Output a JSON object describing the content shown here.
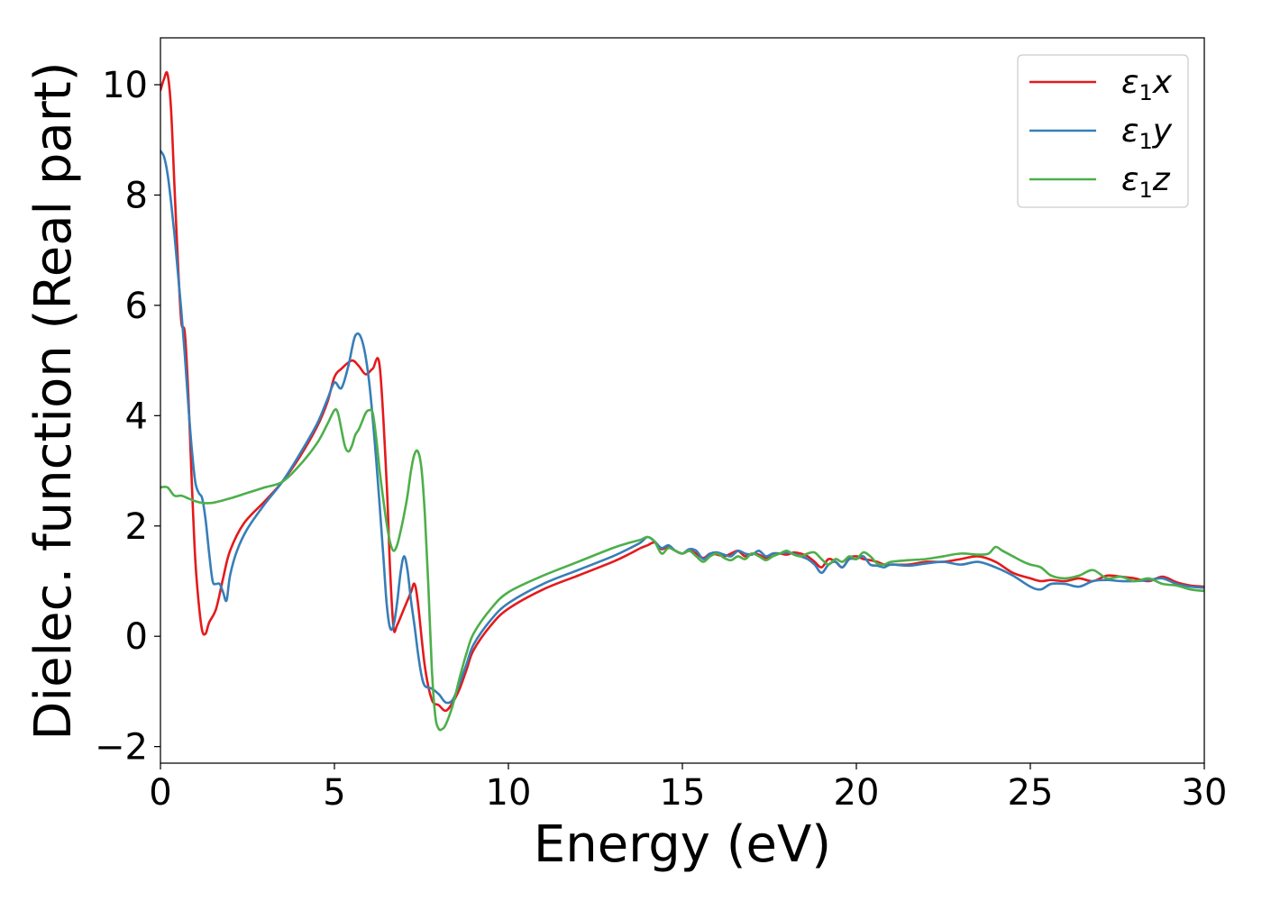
{
  "chart_data": {
    "type": "line",
    "xlabel": "Energy (eV)",
    "ylabel": "Dielec. function (Real part)",
    "xlim": [
      0,
      30
    ],
    "ylim": [
      -2.3,
      10.85
    ],
    "xticks": [
      0,
      5,
      10,
      15,
      20,
      25,
      30
    ],
    "xtick_labels": [
      "0",
      "5",
      "10",
      "15",
      "20",
      "25",
      "30"
    ],
    "yticks": [
      -2,
      0,
      2,
      4,
      6,
      8,
      10
    ],
    "ytick_labels": [
      "−2",
      "0",
      "2",
      "4",
      "6",
      "8",
      "10"
    ],
    "grid": false,
    "legend_position": "top-right",
    "series": [
      {
        "name": "ε1x",
        "name_base": "ε",
        "name_sub": "1",
        "name_var": "x",
        "color": "#e41a1c",
        "x": [
          0,
          0.1,
          0.2,
          0.3,
          0.4,
          0.5,
          0.6,
          0.7,
          0.8,
          0.9,
          1.0,
          1.1,
          1.2,
          1.3,
          1.4,
          1.6,
          1.8,
          2.0,
          2.4,
          3.0,
          3.5,
          4.0,
          4.5,
          4.8,
          5.0,
          5.2,
          5.5,
          5.7,
          5.9,
          6.1,
          6.3,
          6.5,
          6.6,
          6.7,
          6.8,
          7.0,
          7.2,
          7.3,
          7.4,
          7.6,
          7.8,
          8.0,
          8.2,
          8.4,
          8.6,
          8.8,
          9.0,
          9.5,
          10.0,
          11.0,
          12.0,
          13.0,
          13.5,
          13.8,
          14.0,
          14.2,
          14.4,
          14.6,
          14.8,
          15.0,
          15.2,
          15.4,
          15.6,
          15.8,
          16.0,
          16.2,
          16.4,
          16.6,
          16.8,
          17.0,
          17.2,
          17.4,
          17.6,
          17.8,
          18.0,
          18.2,
          18.4,
          18.6,
          18.8,
          19.0,
          19.2,
          19.4,
          19.6,
          19.8,
          20.0,
          20.2,
          20.4,
          20.6,
          20.8,
          21.0,
          21.5,
          22.0,
          22.5,
          23.0,
          23.5,
          24.0,
          24.5,
          25.0,
          25.3,
          25.6,
          26.0,
          26.4,
          26.8,
          27.2,
          27.6,
          28.0,
          28.4,
          28.8,
          29.2,
          29.6,
          30.0
        ],
        "y": [
          9.9,
          10.1,
          10.2,
          9.6,
          8.2,
          6.8,
          5.7,
          5.5,
          4.4,
          2.8,
          1.4,
          0.6,
          0.1,
          0.05,
          0.25,
          0.5,
          1.05,
          1.55,
          2.05,
          2.45,
          2.8,
          3.25,
          3.8,
          4.25,
          4.7,
          4.85,
          5.0,
          4.9,
          4.75,
          4.85,
          4.9,
          2.8,
          1.2,
          0.15,
          0.2,
          0.5,
          0.8,
          0.95,
          0.6,
          -0.55,
          -1.15,
          -1.25,
          -1.35,
          -1.2,
          -0.95,
          -0.6,
          -0.25,
          0.2,
          0.5,
          0.85,
          1.1,
          1.35,
          1.5,
          1.6,
          1.65,
          1.7,
          1.58,
          1.62,
          1.55,
          1.5,
          1.55,
          1.5,
          1.42,
          1.5,
          1.48,
          1.45,
          1.5,
          1.55,
          1.45,
          1.5,
          1.48,
          1.42,
          1.5,
          1.5,
          1.48,
          1.52,
          1.5,
          1.45,
          1.35,
          1.25,
          1.4,
          1.35,
          1.25,
          1.42,
          1.45,
          1.4,
          1.38,
          1.35,
          1.3,
          1.3,
          1.3,
          1.35,
          1.35,
          1.4,
          1.45,
          1.35,
          1.15,
          1.05,
          1.0,
          1.02,
          1.0,
          1.05,
          1.0,
          1.1,
          1.08,
          1.05,
          1.0,
          1.08,
          0.98,
          0.92,
          0.9
        ]
      },
      {
        "name": "ε1y",
        "name_base": "ε",
        "name_sub": "1",
        "name_var": "y",
        "color": "#377eb8",
        "x": [
          0,
          0.1,
          0.2,
          0.3,
          0.4,
          0.5,
          0.6,
          0.7,
          0.8,
          0.9,
          1.0,
          1.1,
          1.2,
          1.3,
          1.4,
          1.5,
          1.6,
          1.7,
          1.8,
          1.9,
          2.0,
          2.2,
          2.5,
          3.0,
          3.5,
          4.0,
          4.5,
          4.8,
          5.0,
          5.2,
          5.4,
          5.6,
          5.8,
          6.0,
          6.2,
          6.4,
          6.5,
          6.6,
          6.7,
          6.8,
          6.9,
          7.0,
          7.1,
          7.2,
          7.3,
          7.4,
          7.5,
          7.6,
          7.8,
          8.0,
          8.2,
          8.4,
          8.6,
          8.8,
          9.0,
          9.5,
          10.0,
          11.0,
          12.0,
          13.0,
          13.5,
          13.8,
          14.0,
          14.2,
          14.4,
          14.6,
          14.8,
          15.0,
          15.2,
          15.4,
          15.6,
          15.8,
          16.0,
          16.2,
          16.4,
          16.6,
          16.8,
          17.0,
          17.2,
          17.4,
          17.6,
          17.8,
          18.0,
          18.2,
          18.4,
          18.6,
          18.8,
          19.0,
          19.2,
          19.4,
          19.6,
          19.8,
          20.0,
          20.2,
          20.4,
          20.6,
          20.8,
          21.0,
          21.5,
          22.0,
          22.5,
          23.0,
          23.5,
          24.0,
          24.5,
          25.0,
          25.3,
          25.6,
          26.0,
          26.4,
          26.8,
          27.2,
          27.6,
          28.0,
          28.4,
          28.8,
          29.2,
          29.6,
          30.0
        ],
        "y": [
          8.8,
          8.7,
          8.4,
          7.9,
          7.3,
          6.6,
          5.9,
          5.1,
          4.2,
          3.4,
          2.8,
          2.6,
          2.5,
          2.1,
          1.5,
          1.0,
          0.95,
          0.95,
          0.8,
          0.65,
          1.1,
          1.55,
          1.95,
          2.4,
          2.8,
          3.3,
          3.85,
          4.3,
          4.6,
          4.5,
          4.9,
          5.45,
          5.35,
          4.6,
          3.2,
          1.5,
          0.6,
          0.15,
          0.2,
          0.6,
          1.15,
          1.45,
          1.2,
          0.65,
          0.2,
          -0.3,
          -0.7,
          -0.9,
          -0.95,
          -1.05,
          -1.2,
          -1.15,
          -0.85,
          -0.5,
          -0.15,
          0.3,
          0.6,
          0.95,
          1.2,
          1.45,
          1.6,
          1.7,
          1.8,
          1.72,
          1.6,
          1.65,
          1.55,
          1.5,
          1.58,
          1.55,
          1.4,
          1.5,
          1.52,
          1.48,
          1.45,
          1.55,
          1.5,
          1.48,
          1.55,
          1.45,
          1.5,
          1.5,
          1.52,
          1.5,
          1.45,
          1.4,
          1.3,
          1.15,
          1.3,
          1.35,
          1.25,
          1.4,
          1.4,
          1.45,
          1.3,
          1.28,
          1.25,
          1.3,
          1.28,
          1.32,
          1.35,
          1.3,
          1.35,
          1.25,
          1.1,
          0.9,
          0.85,
          0.95,
          0.95,
          0.9,
          1.0,
          1.02,
          1.0,
          1.0,
          1.02,
          1.05,
          0.95,
          0.9,
          0.88
        ]
      },
      {
        "name": "ε1z",
        "name_base": "ε",
        "name_sub": "1",
        "name_var": "z",
        "color": "#4daf4a",
        "x": [
          0,
          0.2,
          0.4,
          0.6,
          0.8,
          1.0,
          1.2,
          1.5,
          2.0,
          2.5,
          3.0,
          3.5,
          4.0,
          4.5,
          4.8,
          5.0,
          5.1,
          5.2,
          5.3,
          5.4,
          5.5,
          5.6,
          5.7,
          5.8,
          5.9,
          6.0,
          6.1,
          6.2,
          6.3,
          6.4,
          6.5,
          6.6,
          6.7,
          6.8,
          6.9,
          7.0,
          7.1,
          7.2,
          7.3,
          7.4,
          7.5,
          7.6,
          7.7,
          7.8,
          7.9,
          8.0,
          8.1,
          8.2,
          8.4,
          8.6,
          8.8,
          9.0,
          9.5,
          10.0,
          11.0,
          12.0,
          13.0,
          13.5,
          13.8,
          14.0,
          14.2,
          14.4,
          14.6,
          14.8,
          15.0,
          15.2,
          15.4,
          15.6,
          15.8,
          16.0,
          16.2,
          16.4,
          16.6,
          16.8,
          17.0,
          17.2,
          17.4,
          17.6,
          17.8,
          18.0,
          18.2,
          18.4,
          18.6,
          18.8,
          19.0,
          19.2,
          19.4,
          19.6,
          19.8,
          20.0,
          20.2,
          20.4,
          20.6,
          20.8,
          21.0,
          21.5,
          22.0,
          22.5,
          23.0,
          23.5,
          23.8,
          24.0,
          24.2,
          24.5,
          24.8,
          25.0,
          25.3,
          25.6,
          26.0,
          26.4,
          26.8,
          27.2,
          27.6,
          28.0,
          28.4,
          28.8,
          29.2,
          29.6,
          30.0
        ],
        "y": [
          2.7,
          2.7,
          2.55,
          2.55,
          2.5,
          2.45,
          2.42,
          2.42,
          2.5,
          2.6,
          2.7,
          2.8,
          3.1,
          3.5,
          3.85,
          4.1,
          4.05,
          3.75,
          3.45,
          3.35,
          3.45,
          3.65,
          3.75,
          3.9,
          4.05,
          4.1,
          4.05,
          3.6,
          3.0,
          2.5,
          2.05,
          1.7,
          1.55,
          1.65,
          1.9,
          2.2,
          2.55,
          3.0,
          3.3,
          3.35,
          3.05,
          2.2,
          0.9,
          -0.6,
          -1.45,
          -1.68,
          -1.68,
          -1.6,
          -1.25,
          -0.75,
          -0.3,
          0.05,
          0.5,
          0.8,
          1.1,
          1.35,
          1.6,
          1.7,
          1.75,
          1.8,
          1.72,
          1.5,
          1.6,
          1.55,
          1.5,
          1.55,
          1.45,
          1.35,
          1.45,
          1.5,
          1.42,
          1.38,
          1.45,
          1.4,
          1.5,
          1.45,
          1.38,
          1.45,
          1.5,
          1.55,
          1.48,
          1.45,
          1.5,
          1.52,
          1.4,
          1.3,
          1.4,
          1.35,
          1.45,
          1.4,
          1.52,
          1.45,
          1.32,
          1.3,
          1.35,
          1.38,
          1.4,
          1.45,
          1.5,
          1.48,
          1.5,
          1.62,
          1.55,
          1.45,
          1.35,
          1.3,
          1.25,
          1.1,
          1.05,
          1.1,
          1.2,
          1.05,
          1.08,
          1.0,
          1.05,
          0.95,
          0.92,
          0.85,
          0.82
        ]
      }
    ]
  }
}
